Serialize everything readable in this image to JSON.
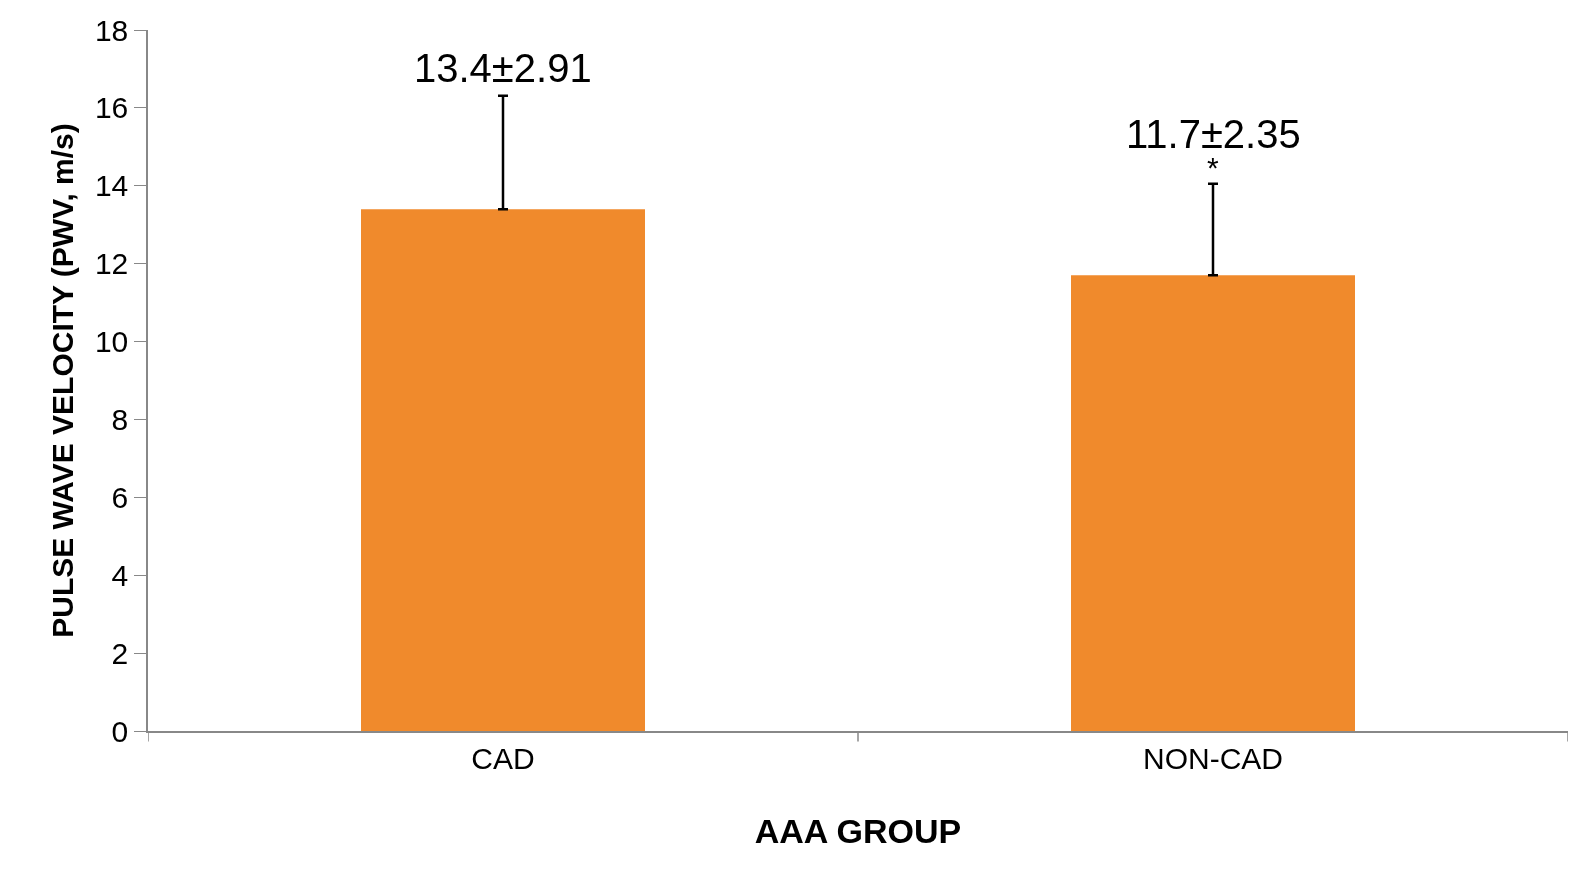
{
  "chart_data": {
    "type": "bar",
    "xlabel": "AAA GROUP",
    "ylabel": "PULSE WAVE VELOCITY (PWV, m/s)",
    "categories": [
      "CAD",
      "NON-CAD"
    ],
    "values": [
      13.4,
      11.7
    ],
    "color": "#f08a2c",
    "errors": [
      [
        13.4,
        16.31
      ],
      [
        11.7,
        14.05
      ]
    ],
    "value_labels": [
      "13.4±2.91",
      "11.7±2.35"
    ],
    "annotations": [
      "*"
    ],
    "ylim": [
      0,
      18
    ],
    "yticks": [
      0,
      2,
      4,
      6,
      8,
      10,
      12,
      14,
      16,
      18
    ]
  }
}
